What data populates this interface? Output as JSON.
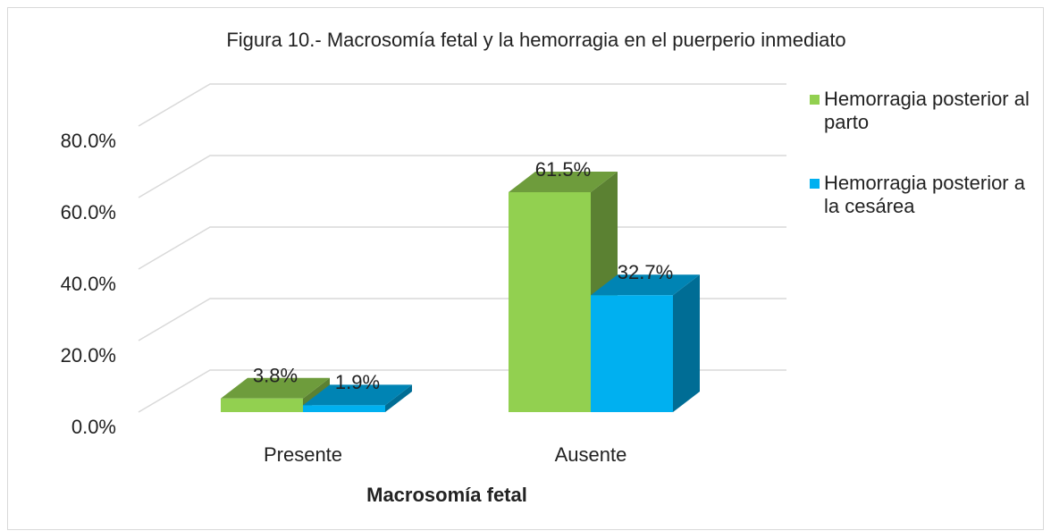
{
  "chart_data": {
    "type": "bar3d",
    "title": "Figura 10.- Macrosomía fetal y la hemorragia en el puerperio inmediato",
    "x_label": "Macrosomía fetal",
    "categories": [
      "Presente",
      "Ausente"
    ],
    "series": [
      {
        "name": "Hemorragia posterior al parto",
        "color": "#92d050",
        "values": [
          3.8,
          61.5
        ],
        "value_labels": [
          "3.8%",
          "61.5%"
        ]
      },
      {
        "name": "Hemorragia posterior a la cesárea",
        "color": "#00b0f0",
        "values": [
          1.9,
          32.7
        ],
        "value_labels": [
          "1.9%",
          "32.7%"
        ]
      }
    ],
    "ylim": [
      0,
      80
    ],
    "yticks": [
      {
        "value": 0,
        "label": "0.0%"
      },
      {
        "value": 20,
        "label": "20.0%"
      },
      {
        "value": 40,
        "label": "40.0%"
      },
      {
        "value": 60,
        "label": "60.0%"
      },
      {
        "value": 80,
        "label": "80.0%"
      }
    ],
    "grid": true,
    "legend": "right"
  }
}
